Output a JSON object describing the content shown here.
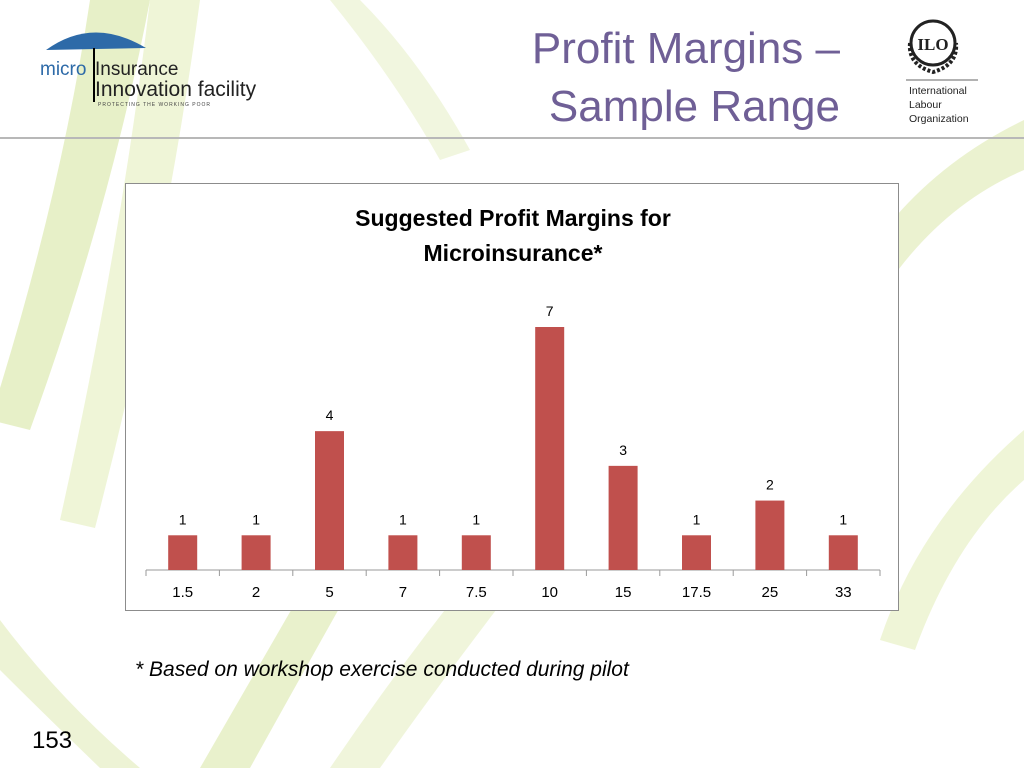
{
  "slide": {
    "title_line1": "Profit Margins –",
    "title_line2": "Sample Range",
    "footnote": "* Based on workshop exercise conducted during pilot",
    "page_number": "153"
  },
  "logos": {
    "left_line1": "micro",
    "left_line1b": "Insurance",
    "left_line2": "Innovation facility",
    "left_tagline": "PROTECTING THE WORKING POOR",
    "right_mark": "ILO",
    "right_line1": "International",
    "right_line2": "Labour",
    "right_line3": "Organization"
  },
  "colors": {
    "title": "#6f5f96",
    "bar": "#c0504d",
    "logo_blue": "#2d6aa8",
    "background_accent": "#c9dc8a"
  },
  "chart_data": {
    "type": "bar",
    "title": "Suggested Profit Margins for Microinsurance*",
    "title_line1": "Suggested Profit Margins for",
    "title_line2": "Microinsurance*",
    "categories": [
      "1.5",
      "2",
      "5",
      "7",
      "7.5",
      "10",
      "15",
      "17.5",
      "25",
      "33"
    ],
    "values": [
      1,
      1,
      4,
      1,
      1,
      7,
      3,
      1,
      2,
      1
    ],
    "xlabel": "",
    "ylabel": "",
    "ylim": [
      0,
      7
    ],
    "data_labels": true,
    "legend": false,
    "grid": false
  }
}
